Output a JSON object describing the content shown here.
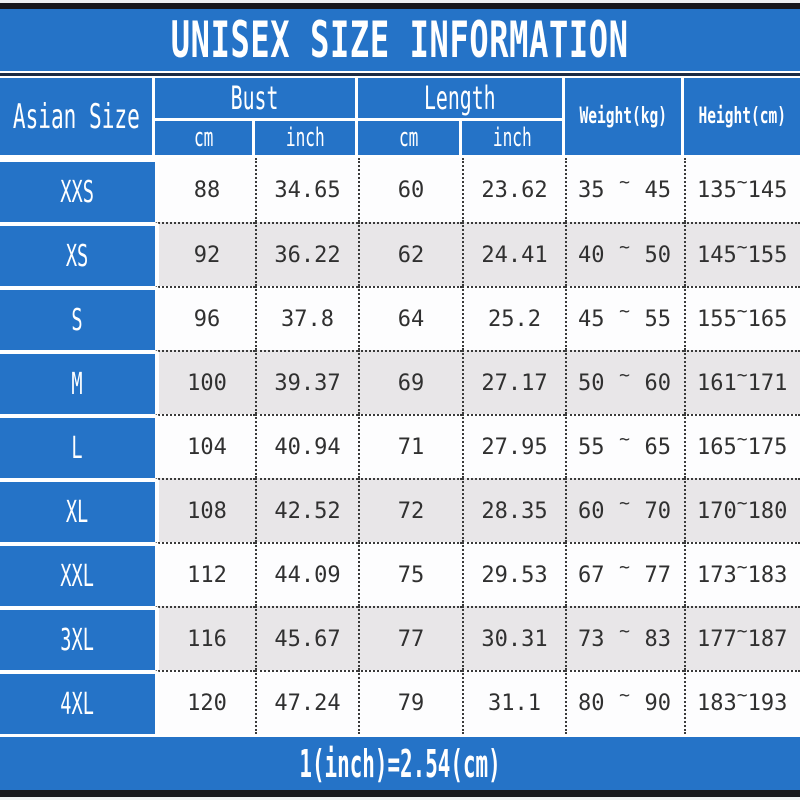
{
  "colors": {
    "accent_blue": "#2573c7",
    "alt_row_gray": "#e8e6e8",
    "divider_navy": "#1c2b44",
    "frame_black": "#17171c",
    "text_dark": "#303030"
  },
  "chart_data": {
    "type": "table",
    "title": "UNISEX SIZE INFORMATION",
    "tilde": "~",
    "footnote": "1(inch)=2.54(cm)",
    "column_groups": {
      "size": "Asian Size",
      "bust": "Bust",
      "length": "Length",
      "weight": "Weight(kg)",
      "height": "Height(cm)"
    },
    "subheaders": {
      "cm": "cm",
      "inch": "inch"
    },
    "rows": [
      {
        "size": "XXS",
        "bust_cm": "88",
        "bust_inch": "34.65",
        "length_cm": "60",
        "length_inch": "23.62",
        "weight_min": "35",
        "weight_max": "45",
        "height_min": "135",
        "height_max": "145"
      },
      {
        "size": "XS",
        "bust_cm": "92",
        "bust_inch": "36.22",
        "length_cm": "62",
        "length_inch": "24.41",
        "weight_min": "40",
        "weight_max": "50",
        "height_min": "145",
        "height_max": "155"
      },
      {
        "size": "S",
        "bust_cm": "96",
        "bust_inch": "37.8",
        "length_cm": "64",
        "length_inch": "25.2",
        "weight_min": "45",
        "weight_max": "55",
        "height_min": "155",
        "height_max": "165"
      },
      {
        "size": "M",
        "bust_cm": "100",
        "bust_inch": "39.37",
        "length_cm": "69",
        "length_inch": "27.17",
        "weight_min": "50",
        "weight_max": "60",
        "height_min": "161",
        "height_max": "171"
      },
      {
        "size": "L",
        "bust_cm": "104",
        "bust_inch": "40.94",
        "length_cm": "71",
        "length_inch": "27.95",
        "weight_min": "55",
        "weight_max": "65",
        "height_min": "165",
        "height_max": "175"
      },
      {
        "size": "XL",
        "bust_cm": "108",
        "bust_inch": "42.52",
        "length_cm": "72",
        "length_inch": "28.35",
        "weight_min": "60",
        "weight_max": "70",
        "height_min": "170",
        "height_max": "180"
      },
      {
        "size": "XXL",
        "bust_cm": "112",
        "bust_inch": "44.09",
        "length_cm": "75",
        "length_inch": "29.53",
        "weight_min": "67",
        "weight_max": "77",
        "height_min": "173",
        "height_max": "183"
      },
      {
        "size": "3XL",
        "bust_cm": "116",
        "bust_inch": "45.67",
        "length_cm": "77",
        "length_inch": "30.31",
        "weight_min": "73",
        "weight_max": "83",
        "height_min": "177",
        "height_max": "187"
      },
      {
        "size": "4XL",
        "bust_cm": "120",
        "bust_inch": "47.24",
        "length_cm": "79",
        "length_inch": "31.1",
        "weight_min": "80",
        "weight_max": "90",
        "height_min": "183",
        "height_max": "193"
      }
    ]
  }
}
